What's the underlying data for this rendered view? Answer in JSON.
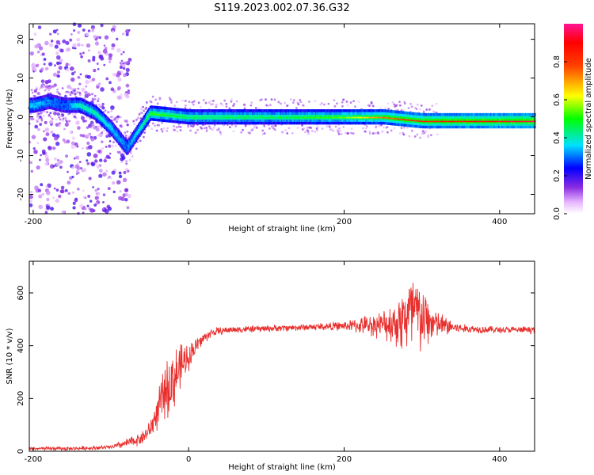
{
  "title": "S119.2023.002.07.36.G32",
  "colors": {
    "snr_line": "#e8302e",
    "axis": "#000000"
  },
  "chart_data": [
    {
      "type": "heatmap",
      "xlabel": "Height of straight line (km)",
      "ylabel": "Frequency (Hz)",
      "xlim": [
        -205,
        445
      ],
      "ylim": [
        -25,
        24
      ],
      "xticks": [
        -200,
        0,
        200,
        400
      ],
      "yticks": [
        -20,
        -10,
        0,
        10,
        20
      ],
      "colorbar": {
        "label": "Normalized spectral amplitude",
        "range": [
          0,
          1
        ],
        "ticks": [
          0.0,
          0.2,
          0.4,
          0.6,
          0.8
        ],
        "colormap": "white-purple-blue-cyan-green-yellow-red-magenta"
      },
      "trace": [
        {
          "x": -200,
          "f": 3,
          "amp": 0.35
        },
        {
          "x": -180,
          "f": 4,
          "amp": 0.3
        },
        {
          "x": -160,
          "f": 3,
          "amp": 0.28
        },
        {
          "x": -140,
          "f": 3,
          "amp": 0.4
        },
        {
          "x": -120,
          "f": 1,
          "amp": 0.4
        },
        {
          "x": -100,
          "f": -3,
          "amp": 0.35
        },
        {
          "x": -80,
          "f": -8,
          "amp": 0.3
        },
        {
          "x": -60,
          "f": -2,
          "amp": 0.4
        },
        {
          "x": -50,
          "f": 1,
          "amp": 0.55
        },
        {
          "x": 0,
          "f": 0,
          "amp": 0.45
        },
        {
          "x": 100,
          "f": 0,
          "amp": 0.45
        },
        {
          "x": 200,
          "f": 0,
          "amp": 0.55
        },
        {
          "x": 250,
          "f": 0,
          "amp": 0.75
        },
        {
          "x": 300,
          "f": -1,
          "amp": 0.85
        },
        {
          "x": 445,
          "f": -1,
          "amp": 0.95
        }
      ]
    },
    {
      "type": "line",
      "xlabel": "Height of straight line (km)",
      "ylabel": "SNR (10 * v/v)",
      "xlim": [
        -205,
        445
      ],
      "ylim": [
        0,
        720
      ],
      "xticks": [
        -200,
        0,
        200,
        400
      ],
      "yticks": [
        0,
        200,
        400,
        600
      ],
      "series": [
        {
          "x": [
            -205,
            -150,
            -100,
            -80,
            -60,
            -50,
            -40,
            -30,
            -20,
            -10,
            0,
            10,
            20,
            30,
            50,
            100,
            150,
            200,
            250,
            270,
            280,
            290,
            300,
            320,
            350,
            400,
            445
          ],
          "values": [
            10,
            10,
            15,
            30,
            50,
            80,
            150,
            230,
            270,
            320,
            360,
            400,
            430,
            450,
            460,
            465,
            470,
            475,
            480,
            490,
            510,
            520,
            500,
            480,
            465,
            460,
            460
          ],
          "spread": [
            8,
            8,
            10,
            20,
            30,
            40,
            80,
            120,
            150,
            100,
            60,
            40,
            25,
            20,
            15,
            15,
            15,
            20,
            60,
            120,
            180,
            220,
            150,
            60,
            20,
            15,
            15
          ]
        }
      ]
    }
  ]
}
